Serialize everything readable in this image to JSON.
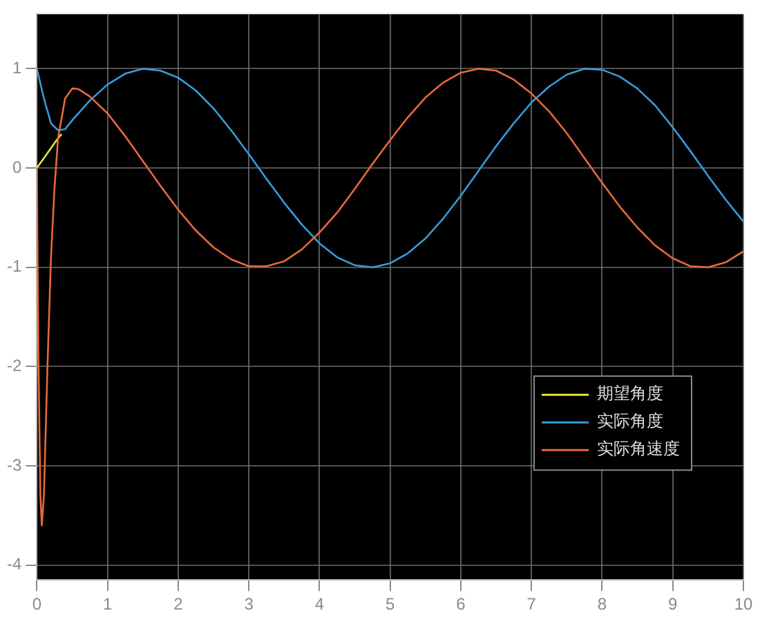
{
  "chart_data": {
    "type": "line",
    "xlim": [
      0,
      10
    ],
    "xticks": [
      0,
      1,
      2,
      3,
      4,
      5,
      6,
      7,
      8,
      9,
      10
    ],
    "ylim": [
      -4.15,
      1.55
    ],
    "yticks": [
      -4,
      -3,
      -2,
      -1,
      0,
      1
    ],
    "grid": true,
    "legend": "bottom right",
    "series": [
      {
        "name": "期望角度",
        "color": "#e6e632",
        "x": [
          0,
          0.1,
          0.2,
          0.3,
          0.35
        ],
        "values": [
          0,
          0.1,
          0.2,
          0.3,
          0.34
        ]
      },
      {
        "name": "实际角度",
        "color": "#3a9ad9",
        "x": [
          0,
          0.1,
          0.2,
          0.3,
          0.4,
          0.5,
          0.75,
          1,
          1.25,
          1.5,
          1.75,
          2,
          2.25,
          2.5,
          2.75,
          3,
          3.25,
          3.5,
          3.75,
          4,
          4.25,
          4.5,
          4.75,
          5,
          5.25,
          5.5,
          5.75,
          6,
          6.25,
          6.5,
          6.75,
          7,
          7.25,
          7.5,
          7.75,
          8,
          8.25,
          8.5,
          8.75,
          9,
          9.25,
          9.5,
          9.75,
          10
        ],
        "values": [
          1,
          0.7,
          0.45,
          0.38,
          0.39,
          0.48,
          0.68,
          0.84,
          0.95,
          1.0,
          0.98,
          0.91,
          0.78,
          0.6,
          0.38,
          0.14,
          -0.11,
          -0.35,
          -0.57,
          -0.76,
          -0.9,
          -0.98,
          -1.0,
          -0.96,
          -0.86,
          -0.71,
          -0.51,
          -0.28,
          -0.03,
          0.22,
          0.45,
          0.66,
          0.82,
          0.94,
          1.0,
          0.99,
          0.92,
          0.8,
          0.63,
          0.41,
          0.17,
          -0.08,
          -0.32,
          -0.54
        ]
      },
      {
        "name": "实际角速度",
        "color": "#e8693a",
        "x": [
          0,
          0.02,
          0.05,
          0.07,
          0.1,
          0.15,
          0.2,
          0.25,
          0.3,
          0.4,
          0.5,
          0.55,
          0.6,
          0.75,
          1,
          1.25,
          1.5,
          1.75,
          2,
          2.25,
          2.5,
          2.75,
          3,
          3.25,
          3.5,
          3.75,
          4,
          4.25,
          4.5,
          4.75,
          5,
          5.25,
          5.5,
          5.75,
          6,
          6.25,
          6.5,
          6.75,
          7,
          7.25,
          7.5,
          7.75,
          8,
          8.25,
          8.5,
          8.75,
          9,
          9.25,
          9.5,
          9.75,
          10
        ],
        "values": [
          0,
          -1.8,
          -3.3,
          -3.6,
          -3.3,
          -2.0,
          -0.9,
          -0.2,
          0.3,
          0.7,
          0.8,
          0.8,
          0.79,
          0.72,
          0.55,
          0.32,
          0.07,
          -0.18,
          -0.42,
          -0.63,
          -0.8,
          -0.92,
          -0.99,
          -0.99,
          -0.94,
          -0.82,
          -0.65,
          -0.45,
          -0.21,
          0.04,
          0.28,
          0.51,
          0.71,
          0.86,
          0.96,
          1.0,
          0.98,
          0.89,
          0.75,
          0.57,
          0.35,
          0.1,
          -0.15,
          -0.39,
          -0.6,
          -0.78,
          -0.91,
          -0.99,
          -1.0,
          -0.95,
          -0.84
        ]
      }
    ]
  }
}
